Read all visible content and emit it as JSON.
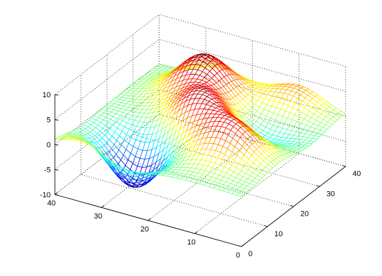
{
  "chart_data": {
    "type": "surface-mesh",
    "title": "",
    "xlabel": "",
    "ylabel": "",
    "zlabel": "",
    "grid": true,
    "colormap": "jet",
    "grid_size": [
      40,
      40
    ],
    "xlim": [
      0,
      40
    ],
    "ylim": [
      0,
      40
    ],
    "zlim": [
      -10,
      10
    ],
    "x_ticks": [
      {
        "value": 0,
        "label": "0"
      },
      {
        "value": 10,
        "label": "10"
      },
      {
        "value": 20,
        "label": "20"
      },
      {
        "value": 30,
        "label": "30"
      },
      {
        "value": 40,
        "label": "40"
      }
    ],
    "y_ticks": [
      {
        "value": 0,
        "label": "0"
      },
      {
        "value": 10,
        "label": "10"
      },
      {
        "value": 20,
        "label": "20"
      },
      {
        "value": 30,
        "label": "30"
      },
      {
        "value": 40,
        "label": "40"
      }
    ],
    "z_ticks": [
      {
        "value": -10,
        "label": "-10"
      },
      {
        "value": -5,
        "label": "-5"
      },
      {
        "value": 0,
        "label": "0"
      },
      {
        "value": 5,
        "label": "5"
      },
      {
        "value": 10,
        "label": "10"
      }
    ],
    "surface_peaks": [
      {
        "x": 26,
        "y": 32,
        "z": 8.5
      },
      {
        "x": 20,
        "y": 20,
        "z": 7.5
      },
      {
        "x": 10,
        "y": 14,
        "z": 6.5
      },
      {
        "x": 32,
        "y": 1,
        "z": 4
      },
      {
        "x": 10,
        "y": 38,
        "z": 4
      },
      {
        "x": 28,
        "y": 8,
        "z": -9.8
      },
      {
        "x": 10,
        "y": 26,
        "z": -2.5
      }
    ]
  }
}
